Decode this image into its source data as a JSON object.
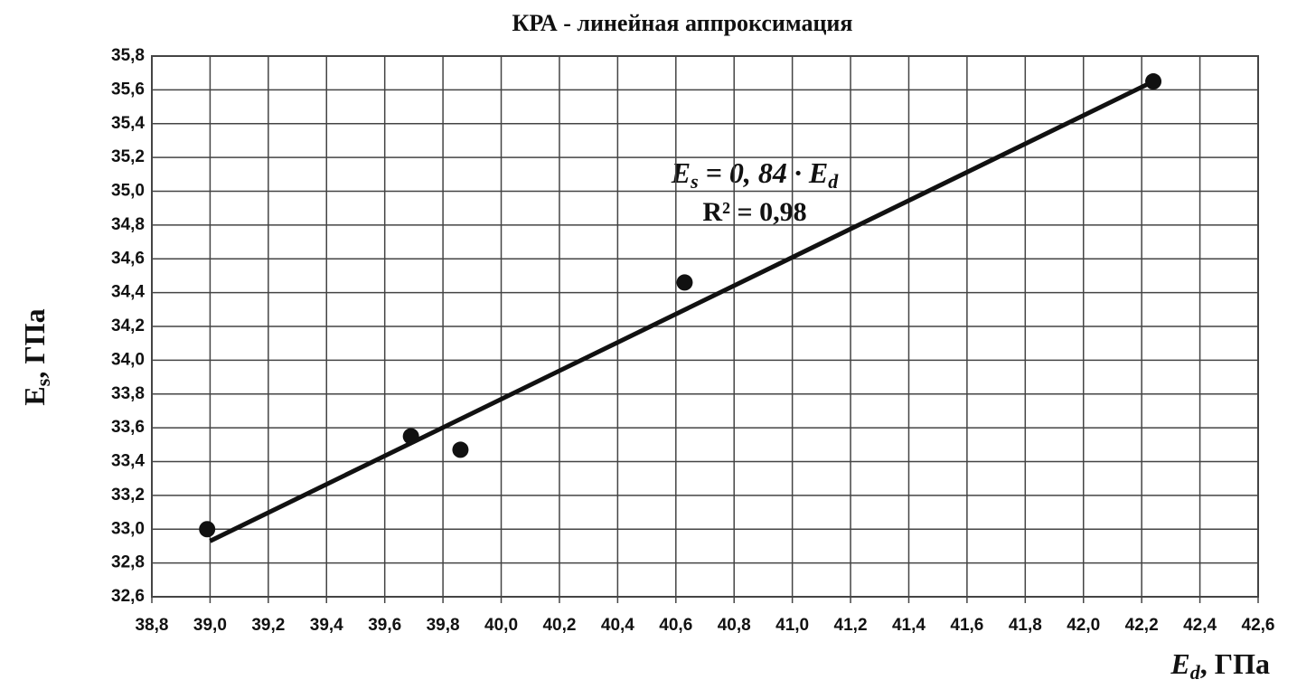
{
  "chart_data": {
    "type": "scatter",
    "title": "КРА - линейная аппроксимация",
    "x_label": {
      "main": "E",
      "sub": "d",
      "rest": ", ГПа"
    },
    "y_label": {
      "main": "E",
      "sub": "s",
      "rest": ", ГПа"
    },
    "annotations": [
      {
        "main": "E",
        "sub": "s",
        "rest": " = 0, 84 · E",
        "sub2": "d"
      },
      {
        "text": "R² = 0,98"
      }
    ],
    "x": [
      38.99,
      39.69,
      39.86,
      40.63,
      42.24
    ],
    "series": [
      {
        "color": "#111111",
        "values": [
          33.0,
          33.55,
          33.47,
          34.46,
          35.65
        ]
      }
    ],
    "trendline": {
      "color": "#111111",
      "x": [
        39.0,
        42.24
      ],
      "y": [
        32.93,
        35.65
      ]
    },
    "xlim": [
      38.8,
      42.6
    ],
    "ylim": [
      32.6,
      35.8
    ],
    "xticks": [
      {
        "value": 38.8,
        "label": "38,8"
      },
      {
        "value": 39.0,
        "label": "39,0"
      },
      {
        "value": 39.2,
        "label": "39,2"
      },
      {
        "value": 39.4,
        "label": "39,4"
      },
      {
        "value": 39.6,
        "label": "39,6"
      },
      {
        "value": 39.8,
        "label": "39,8"
      },
      {
        "value": 40.0,
        "label": "40,0"
      },
      {
        "value": 40.2,
        "label": "40,2"
      },
      {
        "value": 40.4,
        "label": "40,4"
      },
      {
        "value": 40.6,
        "label": "40,6"
      },
      {
        "value": 40.8,
        "label": "40,8"
      },
      {
        "value": 41.0,
        "label": "41,0"
      },
      {
        "value": 41.2,
        "label": "41,2"
      },
      {
        "value": 41.4,
        "label": "41,4"
      },
      {
        "value": 41.6,
        "label": "41,6"
      },
      {
        "value": 41.8,
        "label": "41,8"
      },
      {
        "value": 42.0,
        "label": "42,0"
      },
      {
        "value": 42.2,
        "label": "42,2"
      },
      {
        "value": 42.4,
        "label": "42,4"
      },
      {
        "value": 42.6,
        "label": "42,6"
      }
    ],
    "yticks": [
      {
        "value": 32.6,
        "label": "32,6"
      },
      {
        "value": 32.8,
        "label": "32,8"
      },
      {
        "value": 33.0,
        "label": "33,0"
      },
      {
        "value": 33.2,
        "label": "33,2"
      },
      {
        "value": 33.4,
        "label": "33,4"
      },
      {
        "value": 33.6,
        "label": "33,6"
      },
      {
        "value": 33.8,
        "label": "33,8"
      },
      {
        "value": 34.0,
        "label": "34,0"
      },
      {
        "value": 34.2,
        "label": "34,2"
      },
      {
        "value": 34.4,
        "label": "34,4"
      },
      {
        "value": 34.6,
        "label": "34,6"
      },
      {
        "value": 34.8,
        "label": "34,8"
      },
      {
        "value": 35.0,
        "label": "35,0"
      },
      {
        "value": 35.2,
        "label": "35,2"
      },
      {
        "value": 35.4,
        "label": "35,4"
      },
      {
        "value": 35.6,
        "label": "35,6"
      },
      {
        "value": 35.8,
        "label": "35,8"
      }
    ],
    "grid": true
  }
}
